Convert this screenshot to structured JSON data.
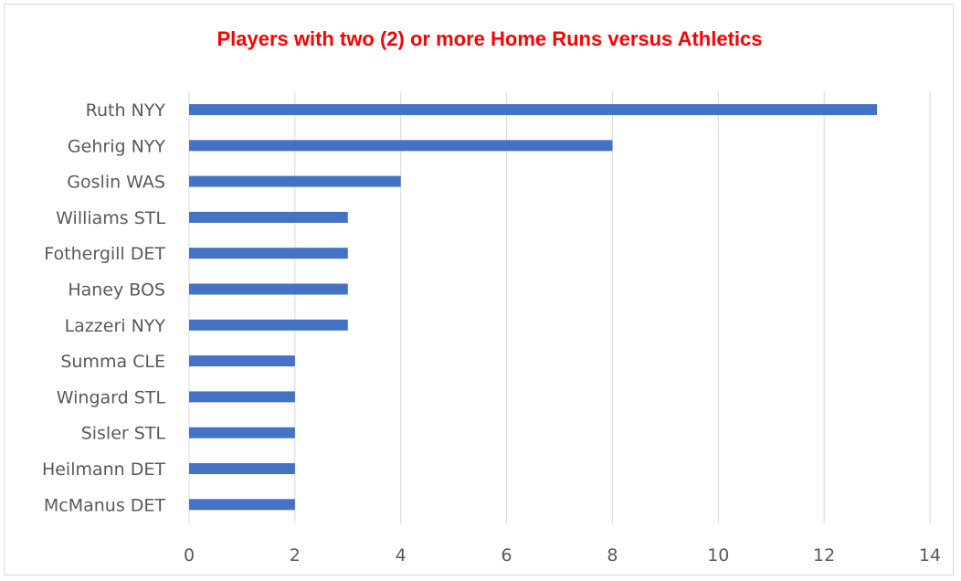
{
  "chart_data": {
    "type": "bar",
    "orientation": "horizontal",
    "title": "Players with two (2) or more Home Runs versus Athletics",
    "categories": [
      "Ruth NYY",
      "Gehrig NYY",
      "Goslin WAS",
      "Williams STL",
      "Fothergill DET",
      "Haney BOS",
      "Lazzeri NYY",
      "Summa CLE",
      "Wingard STL",
      "Sisler STL",
      "Heilmann DET",
      "McManus DET"
    ],
    "values": [
      13,
      8,
      4,
      3,
      3,
      3,
      3,
      2,
      2,
      2,
      2,
      2
    ],
    "xlim": [
      0,
      14
    ],
    "xticks": [
      0,
      2,
      4,
      6,
      8,
      10,
      12,
      14
    ],
    "xlabel": "",
    "ylabel": "",
    "grid": "vertical",
    "legend": "none",
    "colors": {
      "title": "#ff0000",
      "bar": "#4472c4",
      "grid": "#d9d9d9",
      "tick_text": "#595959"
    }
  }
}
